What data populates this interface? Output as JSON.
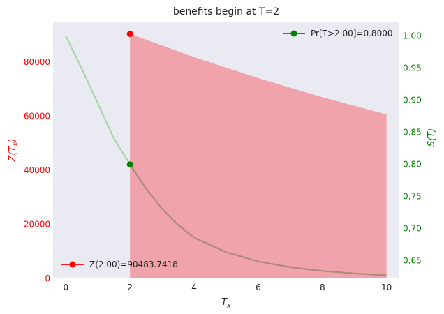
{
  "chart_data": {
    "type": "line",
    "title": "benefits begin at T=2",
    "xlabel": "T_x",
    "xlim": [
      -0.4,
      10.4
    ],
    "x_ticks": [
      0,
      2,
      4,
      6,
      8,
      10
    ],
    "left_axis": {
      "ylabel": "Z(T_x)",
      "ylim": [
        0,
        95000
      ],
      "ticks": [
        0,
        20000,
        40000,
        60000,
        80000
      ],
      "color": "#ff0000"
    },
    "right_axis": {
      "ylabel": "S(T)",
      "ylim": [
        0.6225,
        1.0225
      ],
      "ticks": [
        0.65,
        0.7,
        0.75,
        0.8,
        0.85,
        0.9,
        0.95,
        1.0
      ],
      "color": "#008000"
    },
    "series": [
      {
        "axis": "left",
        "kind": "area",
        "color": "#f0a3aa",
        "x": [
          2,
          4,
          6,
          8,
          10
        ],
        "values": [
          90483.7418,
          81873.0753,
          74081.8221,
          67032.0046,
          60653.066
        ]
      },
      {
        "axis": "right",
        "kind": "line",
        "color": "#a8d5a8",
        "x": [
          0,
          0.5,
          1,
          1.5,
          2,
          2.5,
          3,
          3.5,
          4,
          5,
          6,
          7,
          8,
          9,
          10
        ],
        "values": [
          1.0,
          0.9487,
          0.8944,
          0.8402,
          0.8,
          0.7624,
          0.7309,
          0.7058,
          0.6859,
          0.6633,
          0.6489,
          0.6399,
          0.6341,
          0.6303,
          0.6271
        ]
      },
      {
        "axis": "right",
        "kind": "line",
        "color": "#b08878",
        "x": [
          2,
          2.5,
          3,
          3.5,
          4,
          5,
          6,
          7,
          8,
          9,
          10
        ],
        "values": [
          0.8,
          0.7624,
          0.7309,
          0.7058,
          0.6859,
          0.6633,
          0.6489,
          0.6399,
          0.6341,
          0.6303,
          0.6271
        ]
      }
    ],
    "markers": [
      {
        "axis": "left",
        "x": 2.0,
        "y": 90483.7418,
        "color": "#ff0000"
      },
      {
        "axis": "right",
        "x": 2.0,
        "y": 0.8,
        "color": "#008000"
      }
    ],
    "legend": [
      {
        "label": "Pr[T>2.00]=0.8000",
        "color": "#008000",
        "position": "top-right"
      },
      {
        "label": "Z(2.00)=90483.7418",
        "color": "#ff0000",
        "position": "bottom-left"
      }
    ]
  }
}
